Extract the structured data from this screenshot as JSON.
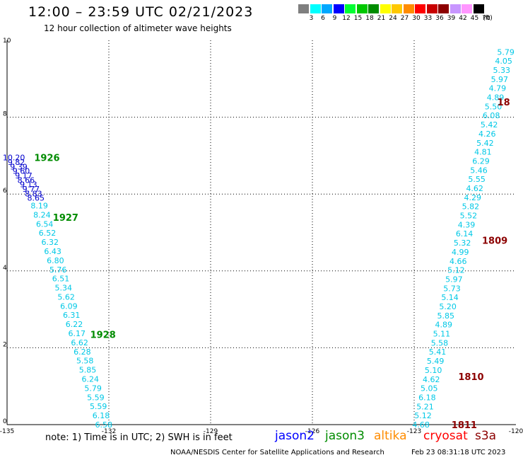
{
  "header": {
    "title": "12:00 – 23:59 UTC 02/21/2023",
    "subtitle": "12 hour collection of altimeter wave heights"
  },
  "color_scale": {
    "labels": [
      "3",
      "6",
      "9",
      "12",
      "15",
      "18",
      "21",
      "24",
      "27",
      "30",
      "33",
      "36",
      "39",
      "42",
      "45",
      "70"
    ],
    "unit": "(ft)",
    "colors": [
      "#7f7f7f",
      "#00ffff",
      "#00a8ff",
      "#0000ff",
      "#00ff33",
      "#00c800",
      "#008c00",
      "#ffff00",
      "#ffc800",
      "#ff8c00",
      "#ff0000",
      "#c80000",
      "#8c0000",
      "#c896ff",
      "#ff96ff",
      "#000000"
    ]
  },
  "chart_data": {
    "type": "scatter",
    "xlim": [
      -135,
      -120
    ],
    "ylim": [
      0,
      10
    ],
    "x_ticks": [
      "-135",
      "-132",
      "-129",
      "-126",
      "-123",
      "-120"
    ],
    "y_ticks": [
      "0",
      "2",
      "4",
      "6",
      "8",
      "10"
    ],
    "grid": true,
    "passes": [
      {
        "label": "1926",
        "label_color": "#008c00",
        "label_x": -134.2,
        "label_y": 6.95
      },
      {
        "label": "1927",
        "label_color": "#008c00",
        "label_x": -133.65,
        "label_y": 5.4
      },
      {
        "label": "1928",
        "label_color": "#008c00",
        "label_x": -132.55,
        "label_y": 2.35
      },
      {
        "label": "18",
        "label_color": "#8c0000",
        "label_x": -120.55,
        "label_y": 8.4
      },
      {
        "label": "1809",
        "label_color": "#8c0000",
        "label_x": -121.0,
        "label_y": 4.8
      },
      {
        "label": "1810",
        "label_color": "#8c0000",
        "label_x": -121.7,
        "label_y": 1.25
      },
      {
        "label": "1811",
        "label_color": "#8c0000",
        "label_x": -121.9,
        "label_y": 0.0
      }
    ],
    "tracks": [
      {
        "color_name": "blue",
        "x_start": -134.8,
        "x_end": -134.15,
        "y_start": 6.95,
        "y_end": 5.9,
        "values": [
          "10.20",
          "9.82",
          "9.39",
          "9.60",
          "9.17",
          "8.66",
          "9.13",
          "9.77",
          "8.83",
          "8.65"
        ]
      },
      {
        "color_name": "cyan",
        "x_start": -134.05,
        "x_end": -132.15,
        "y_start": 5.7,
        "y_end": 0.0,
        "values": [
          "8.19",
          "8.24",
          "6.54",
          "6.52",
          "6.32",
          "6.43",
          "6.80",
          "5.76",
          "6.51",
          "5.34",
          "5.62",
          "6.09",
          "6.31",
          "6.22",
          "6.17",
          "6.62",
          "6.28",
          "5.58",
          "5.85",
          "6.24",
          "5.79",
          "5.59",
          "5.59",
          "6.18",
          "6.58"
        ]
      },
      {
        "color_name": "cyan",
        "x_start": -120.3,
        "x_end": -122.8,
        "y_start": 9.7,
        "y_end": 0.0,
        "values": [
          "5.79",
          "4.05",
          "5.33",
          "5.97",
          "4.79",
          "4.89",
          "5.50",
          "6.08",
          "5.42",
          "4.26",
          "5.42",
          "4.81",
          "6.29",
          "5.46",
          "5.55",
          "4.62",
          "4.29",
          "5.82",
          "5.52",
          "4.39",
          "6.14",
          "5.32",
          "4.99",
          "4.66",
          "5.12",
          "5.97",
          "5.73",
          "5.14",
          "5.20",
          "5.85",
          "4.89",
          "5.11",
          "5.58",
          "5.41",
          "5.49",
          "5.10",
          "4.62",
          "5.05",
          "6.18",
          "5.21",
          "5.12",
          "4.68"
        ]
      }
    ]
  },
  "footer": {
    "note": "note: 1) Time is in UTC; 2) SWH is in feet",
    "legend": [
      {
        "name": "jason2",
        "color": "#0000ff"
      },
      {
        "name": "jason3",
        "color": "#008c00"
      },
      {
        "name": "altika",
        "color": "#ff8c00"
      },
      {
        "name": "cryosat",
        "color": "#ff0000"
      },
      {
        "name": "s3a",
        "color": "#8c0000"
      }
    ],
    "credit": "NOAA/NESDIS Center for Satellite Applications and Research",
    "timestamp": "Feb 23 08:31:18 UTC 2023"
  }
}
